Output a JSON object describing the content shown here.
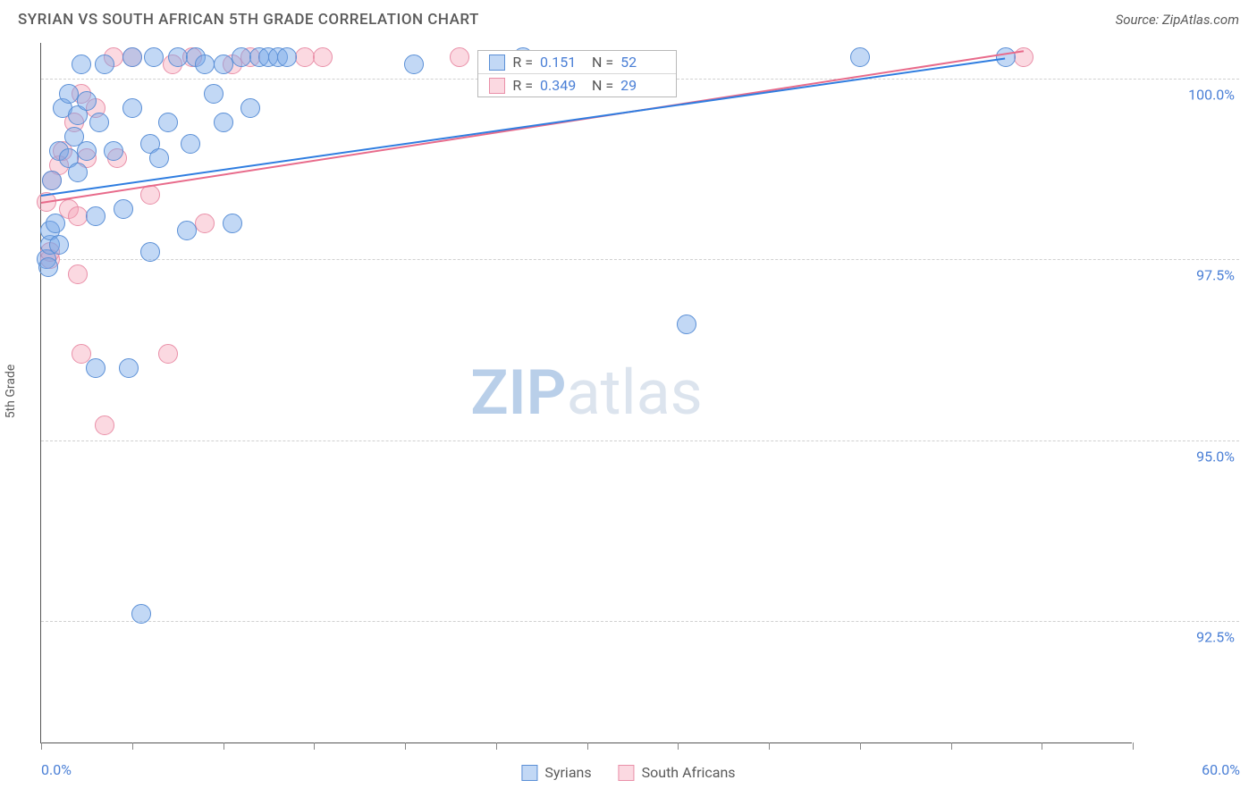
{
  "title": "SYRIAN VS SOUTH AFRICAN 5TH GRADE CORRELATION CHART",
  "source": "Source: ZipAtlas.com",
  "ylabel": "5th Grade",
  "watermark": {
    "zip": "ZIP",
    "atlas": "atlas",
    "zip_color": "#b9cfe9",
    "atlas_color": "#dce4ee"
  },
  "colors": {
    "series_a_fill": "rgba(120,168,232,0.45)",
    "series_a_stroke": "#5a8fd6",
    "series_b_fill": "rgba(244,160,180,0.40)",
    "series_b_stroke": "#e98fa8",
    "trend_a": "#2f7de0",
    "trend_b": "#e86b8b",
    "axis_text": "#4a7fd6",
    "grid": "#d0d0d0",
    "text": "#5a5a5a",
    "bg": "#ffffff"
  },
  "marker": {
    "radius": 11,
    "stroke_width": 1.5
  },
  "chart": {
    "type": "scatter",
    "xlim": [
      0,
      60
    ],
    "ylim": [
      90.8,
      100.5
    ],
    "xticks": [
      0,
      5,
      10,
      15,
      20,
      25,
      30,
      35,
      40,
      45,
      50,
      55,
      60
    ],
    "xtick_labels_shown": {
      "0": "0.0%",
      "60": "60.0%"
    },
    "yticks": [
      92.5,
      95.0,
      97.5,
      100.0
    ],
    "ytick_labels": [
      "92.5%",
      "95.0%",
      "97.5%",
      "100.0%"
    ]
  },
  "stats_box": {
    "rows": [
      {
        "swatch_fill": "rgba(120,168,232,0.45)",
        "swatch_stroke": "#5a8fd6",
        "r_label": "R =",
        "r_val": "0.151",
        "n_label": "N =",
        "n_val": "52"
      },
      {
        "swatch_fill": "rgba(244,160,180,0.40)",
        "swatch_stroke": "#e98fa8",
        "r_label": "R =",
        "r_val": "0.349",
        "n_label": "N =",
        "n_val": "29"
      }
    ]
  },
  "legend": [
    {
      "label": "Syrians",
      "fill": "rgba(120,168,232,0.45)",
      "stroke": "#5a8fd6"
    },
    {
      "label": "South Africans",
      "fill": "rgba(244,160,180,0.40)",
      "stroke": "#e98fa8"
    }
  ],
  "trend_lines": {
    "a": {
      "x1": 0,
      "y1": 98.4,
      "x2": 53,
      "y2": 100.3,
      "color": "#2f7de0",
      "width": 2
    },
    "b": {
      "x1": 0,
      "y1": 98.3,
      "x2": 54,
      "y2": 100.4,
      "color": "#e86b8b",
      "width": 2,
      "dash_tail": true
    }
  },
  "series_a": [
    [
      0.3,
      97.5
    ],
    [
      0.5,
      97.7
    ],
    [
      0.4,
      97.4
    ],
    [
      0.5,
      97.9
    ],
    [
      0.6,
      98.6
    ],
    [
      0.8,
      98.0
    ],
    [
      1.0,
      99.0
    ],
    [
      1.0,
      97.7
    ],
    [
      1.2,
      99.6
    ],
    [
      1.5,
      98.9
    ],
    [
      1.5,
      99.8
    ],
    [
      1.8,
      99.2
    ],
    [
      2.0,
      98.7
    ],
    [
      2.0,
      99.5
    ],
    [
      2.2,
      100.2
    ],
    [
      2.5,
      99.0
    ],
    [
      2.5,
      99.7
    ],
    [
      3.0,
      98.1
    ],
    [
      3.0,
      96.0
    ],
    [
      3.2,
      99.4
    ],
    [
      3.5,
      100.2
    ],
    [
      4.0,
      99.0
    ],
    [
      4.5,
      98.2
    ],
    [
      4.8,
      96.0
    ],
    [
      5.0,
      99.6
    ],
    [
      5.0,
      100.3
    ],
    [
      5.5,
      92.6
    ],
    [
      6.0,
      97.6
    ],
    [
      6.0,
      99.1
    ],
    [
      6.2,
      100.3
    ],
    [
      6.5,
      98.9
    ],
    [
      7.0,
      99.4
    ],
    [
      7.5,
      100.3
    ],
    [
      8.0,
      97.9
    ],
    [
      8.2,
      99.1
    ],
    [
      8.5,
      100.3
    ],
    [
      9.0,
      100.2
    ],
    [
      9.5,
      99.8
    ],
    [
      10.0,
      99.4
    ],
    [
      10.0,
      100.2
    ],
    [
      10.5,
      98.0
    ],
    [
      11.0,
      100.3
    ],
    [
      11.5,
      99.6
    ],
    [
      12.0,
      100.3
    ],
    [
      12.5,
      100.3
    ],
    [
      13.0,
      100.3
    ],
    [
      13.5,
      100.3
    ],
    [
      20.5,
      100.2
    ],
    [
      26.5,
      100.3
    ],
    [
      35.5,
      96.6
    ],
    [
      45.0,
      100.3
    ],
    [
      53.0,
      100.3
    ]
  ],
  "series_b": [
    [
      0.3,
      98.3
    ],
    [
      0.5,
      97.5
    ],
    [
      0.5,
      97.6
    ],
    [
      0.6,
      98.6
    ],
    [
      1.0,
      98.8
    ],
    [
      1.2,
      99.0
    ],
    [
      1.5,
      98.2
    ],
    [
      1.8,
      99.4
    ],
    [
      2.0,
      98.1
    ],
    [
      2.0,
      97.3
    ],
    [
      2.2,
      96.2
    ],
    [
      2.2,
      99.8
    ],
    [
      2.5,
      98.9
    ],
    [
      3.0,
      99.6
    ],
    [
      3.5,
      95.2
    ],
    [
      4.0,
      100.3
    ],
    [
      4.2,
      98.9
    ],
    [
      5.0,
      100.3
    ],
    [
      6.0,
      98.4
    ],
    [
      7.0,
      96.2
    ],
    [
      7.2,
      100.2
    ],
    [
      8.3,
      100.3
    ],
    [
      9.0,
      98.0
    ],
    [
      10.5,
      100.2
    ],
    [
      11.5,
      100.3
    ],
    [
      14.5,
      100.3
    ],
    [
      15.5,
      100.3
    ],
    [
      23.0,
      100.3
    ],
    [
      54.0,
      100.3
    ]
  ]
}
